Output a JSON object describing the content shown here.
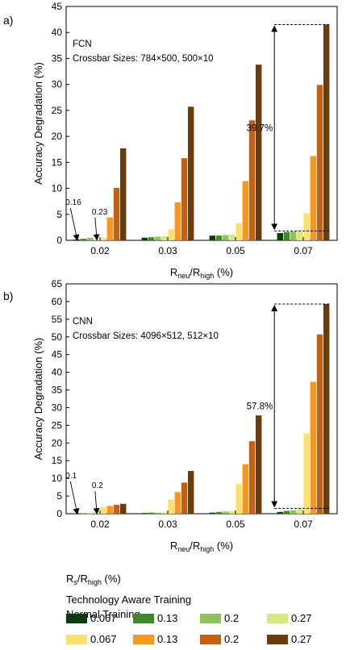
{
  "legend": {
    "title": "R",
    "title_sub": "s",
    "title_rest": "/R",
    "title_sub2": "high",
    "title_tail": " (%)",
    "group1": "Technology Aware Training",
    "group2": "Normal Training",
    "levels": [
      "0.067",
      "0.13",
      "0.2",
      "0.27"
    ]
  },
  "colors": {
    "aware": [
      "#0b3d0b",
      "#3f8a27",
      "#8dc35a",
      "#dbe77e"
    ],
    "normal": [
      "#fde16a",
      "#fb9717",
      "#c95f0c",
      "#6b3c08"
    ]
  },
  "chart_data": [
    {
      "type": "bar",
      "panel_label": "a)",
      "title": "FCN",
      "subtitle": "Crossbar Sizes: 784×500, 500×10",
      "ylabel": "Accuracy Degradation (%)",
      "xlabel_main": "R",
      "xlabel_sub": "neu",
      "xlabel_mid": "/R",
      "xlabel_sub2": "high",
      "xlabel_tail": " (%)",
      "ylim": [
        0,
        45
      ],
      "yticks": [
        0,
        5,
        10,
        15,
        20,
        25,
        30,
        35,
        40,
        45
      ],
      "categories": [
        "0.02",
        "0.03",
        "0.05",
        "0.07"
      ],
      "series": [
        {
          "name": "0.067",
          "group": "aware",
          "values": [
            0.16,
            0.5,
            0.9,
            1.4
          ]
        },
        {
          "name": "0.13",
          "group": "aware",
          "values": [
            0.3,
            0.6,
            0.9,
            1.6
          ]
        },
        {
          "name": "0.2",
          "group": "aware",
          "values": [
            0.5,
            0.7,
            1.0,
            1.7
          ]
        },
        {
          "name": "0.27",
          "group": "aware",
          "values": [
            0.23,
            0.8,
            1.1,
            1.8
          ]
        },
        {
          "name": "0.067",
          "group": "normal",
          "values": [
            0.5,
            2.1,
            3.3,
            5.2
          ]
        },
        {
          "name": "0.13",
          "group": "normal",
          "values": [
            4.4,
            7.3,
            11.4,
            16.2
          ]
        },
        {
          "name": "0.2",
          "group": "normal",
          "values": [
            10.1,
            15.8,
            23.1,
            29.9
          ]
        },
        {
          "name": "0.27",
          "group": "normal",
          "values": [
            17.7,
            25.7,
            33.8,
            41.5
          ]
        }
      ],
      "annotations": {
        "label_left": "0.16",
        "label_right": "0.23",
        "bracket_label": "39.7%",
        "bracket_top": 41.5,
        "bracket_bottom": 1.8
      }
    },
    {
      "type": "bar",
      "panel_label": "b)",
      "title": "CNN",
      "subtitle": "Crossbar Sizes: 4096×512, 512×10",
      "ylabel": "Accuracy Degradation (%)",
      "xlabel_main": "R",
      "xlabel_sub": "neu",
      "xlabel_mid": "/R",
      "xlabel_sub2": "high",
      "xlabel_tail": " (%)",
      "ylim": [
        0,
        65
      ],
      "yticks": [
        0,
        5,
        10,
        15,
        20,
        25,
        30,
        35,
        40,
        45,
        50,
        55,
        60,
        65
      ],
      "categories": [
        "0.02",
        "0.03",
        "0.05",
        "0.07"
      ],
      "series": [
        {
          "name": "0.067",
          "group": "aware",
          "values": [
            0.1,
            0.2,
            0.3,
            0.5
          ]
        },
        {
          "name": "0.13",
          "group": "aware",
          "values": [
            0.1,
            0.3,
            0.5,
            0.8
          ]
        },
        {
          "name": "0.2",
          "group": "aware",
          "values": [
            0.1,
            0.3,
            0.6,
            1.0
          ]
        },
        {
          "name": "0.27",
          "group": "aware",
          "values": [
            0.2,
            0.4,
            0.7,
            1.5
          ]
        },
        {
          "name": "0.067",
          "group": "normal",
          "values": [
            1.8,
            4.0,
            8.4,
            22.7
          ]
        },
        {
          "name": "0.13",
          "group": "normal",
          "values": [
            2.2,
            6.1,
            14.0,
            37.3
          ]
        },
        {
          "name": "0.2",
          "group": "normal",
          "values": [
            2.5,
            8.8,
            20.5,
            50.7
          ]
        },
        {
          "name": "0.27",
          "group": "normal",
          "values": [
            2.8,
            12.1,
            27.8,
            59.3
          ]
        }
      ],
      "annotations": {
        "label_left": "0.1",
        "label_right": "0.2",
        "bracket_label": "57.8%",
        "bracket_top": 59.3,
        "bracket_bottom": 1.5
      }
    }
  ]
}
